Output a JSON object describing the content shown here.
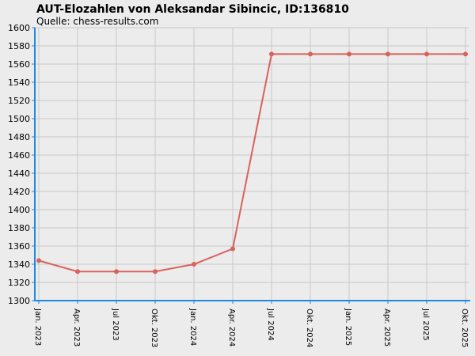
{
  "chart_data": {
    "type": "line",
    "title": "AUT-Elozahlen von Aleksandar Sibincic, ID:136810",
    "subtitle": "Quelle: chess-results.com",
    "categories": [
      "Jan. 2023",
      "Apr. 2023",
      "Jul 2023",
      "Okt. 2023",
      "Jan. 2024",
      "Apr. 2024",
      "Jul 2024",
      "Okt. 2024",
      "Jan. 2025",
      "Apr. 2025",
      "Jul 2025",
      "Okt. 2025"
    ],
    "values": [
      1344,
      1332,
      1332,
      1332,
      1340,
      1357,
      1571,
      1571,
      1571,
      1571,
      1571,
      1571
    ],
    "color": "#d9625c",
    "ylim": [
      1300,
      1600
    ],
    "yticks": [
      1300,
      1320,
      1340,
      1360,
      1380,
      1400,
      1420,
      1440,
      1460,
      1480,
      1500,
      1520,
      1540,
      1560,
      1580,
      1600
    ],
    "grid": true
  }
}
